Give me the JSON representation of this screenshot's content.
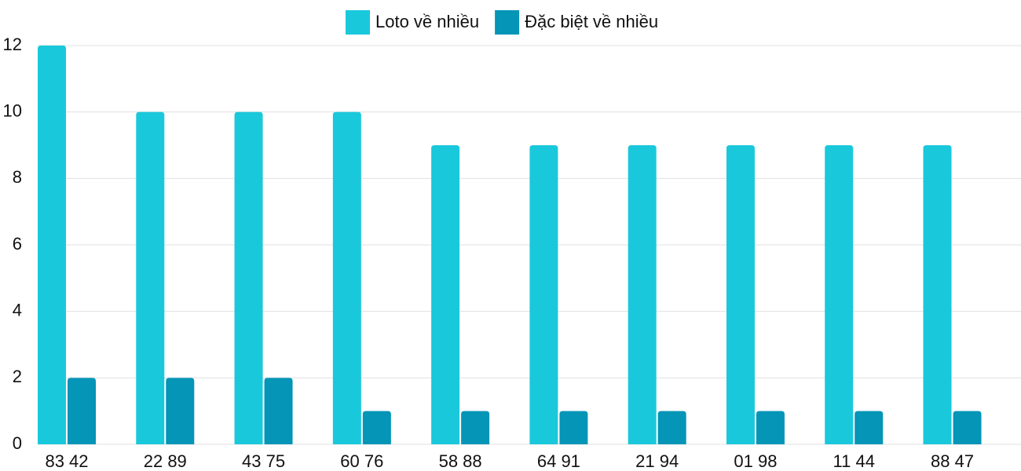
{
  "chart_data": {
    "type": "bar",
    "categories": [
      "83 42",
      "22 89",
      "43 75",
      "60 76",
      "58 88",
      "64 91",
      "21 94",
      "01 98",
      "11 44",
      "88 47"
    ],
    "series": [
      {
        "name": "Loto về nhiều",
        "color": "#1ac8db",
        "values": [
          12,
          10,
          10,
          10,
          9,
          9,
          9,
          9,
          9,
          9
        ]
      },
      {
        "name": "Đặc biệt về nhiều",
        "color": "#0495b7",
        "values": [
          2,
          2,
          2,
          1,
          1,
          1,
          1,
          1,
          1,
          1
        ]
      }
    ],
    "ylim": [
      0,
      12
    ],
    "yticks": [
      0,
      2,
      4,
      6,
      8,
      10,
      12
    ],
    "grid": true,
    "legend": "top"
  }
}
